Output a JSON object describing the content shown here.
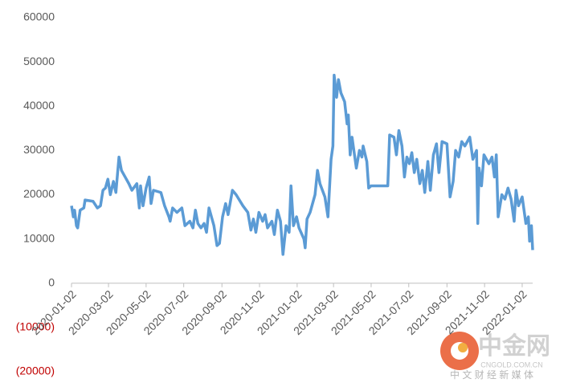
{
  "chart_data": {
    "type": "line",
    "x": [
      "2020-01-02",
      "2020-01-05",
      "2020-01-07",
      "2020-01-10",
      "2020-01-12",
      "2020-01-16",
      "2020-01-22",
      "2020-01-24",
      "2020-02-06",
      "2020-02-13",
      "2020-02-18",
      "2020-02-22",
      "2020-02-26",
      "2020-03-01",
      "2020-03-05",
      "2020-03-10",
      "2020-03-14",
      "2020-03-19",
      "2020-03-23",
      "2020-03-29",
      "2020-04-04",
      "2020-04-09",
      "2020-04-17",
      "2020-04-21",
      "2020-04-23",
      "2020-04-27",
      "2020-05-02",
      "2020-05-07",
      "2020-05-10",
      "2020-05-14",
      "2020-05-26",
      "2020-06-01",
      "2020-06-08",
      "2020-06-10",
      "2020-06-14",
      "2020-06-21",
      "2020-06-29",
      "2020-07-04",
      "2020-07-12",
      "2020-07-17",
      "2020-07-21",
      "2020-07-25",
      "2020-07-30",
      "2020-08-04",
      "2020-08-08",
      "2020-08-12",
      "2020-08-20",
      "2020-08-25",
      "2020-08-29",
      "2020-09-03",
      "2020-09-08",
      "2020-09-12",
      "2020-09-19",
      "2020-09-25",
      "2020-10-06",
      "2020-10-14",
      "2020-10-19",
      "2020-10-23",
      "2020-10-27",
      "2020-11-01",
      "2020-11-07",
      "2020-11-11",
      "2020-11-15",
      "2020-11-22",
      "2020-11-26",
      "2020-12-01",
      "2020-12-06",
      "2020-12-10",
      "2020-12-15",
      "2020-12-20",
      "2020-12-23",
      "2020-12-27",
      "2021-01-01",
      "2021-01-05",
      "2021-01-13",
      "2021-01-15",
      "2021-01-18",
      "2021-01-23",
      "2021-01-31",
      "2021-02-04",
      "2021-02-08",
      "2021-02-16",
      "2021-02-21",
      "2021-02-26",
      "2021-03-01",
      "2021-03-03",
      "2021-03-07",
      "2021-03-10",
      "2021-03-14",
      "2021-03-20",
      "2021-03-24",
      "2021-03-26",
      "2021-03-29",
      "2021-04-01",
      "2021-04-08",
      "2021-04-13",
      "2021-04-17",
      "2021-04-19",
      "2021-04-25",
      "2021-04-28",
      "2021-05-02",
      "2021-05-29",
      "2021-06-01",
      "2021-06-08",
      "2021-06-12",
      "2021-06-16",
      "2021-06-21",
      "2021-06-25",
      "2021-06-29",
      "2021-07-03",
      "2021-07-07",
      "2021-07-11",
      "2021-07-15",
      "2021-07-20",
      "2021-07-24",
      "2021-07-28",
      "2021-08-02",
      "2021-08-06",
      "2021-08-11",
      "2021-08-16",
      "2021-08-20",
      "2021-08-25",
      "2021-09-02",
      "2021-09-07",
      "2021-09-12",
      "2021-09-16",
      "2021-09-21",
      "2021-09-26",
      "2021-10-01",
      "2021-10-09",
      "2021-10-14",
      "2021-10-20",
      "2021-10-22",
      "2021-10-24",
      "2021-10-28",
      "2021-11-01",
      "2021-11-09",
      "2021-11-14",
      "2021-11-18",
      "2021-11-21",
      "2021-11-24",
      "2021-11-30",
      "2021-12-05",
      "2021-12-10",
      "2021-12-15",
      "2021-12-20",
      "2021-12-23",
      "2021-12-27",
      "2022-01-02",
      "2022-01-08",
      "2022-01-12",
      "2022-01-14",
      "2022-01-17",
      "2022-01-19"
    ],
    "series": [
      {
        "color": "#5b9bd5",
        "values": [
          17500,
          15000,
          16500,
          13000,
          12500,
          16500,
          17000,
          18800,
          18500,
          17000,
          17500,
          21000,
          21500,
          23500,
          20000,
          23000,
          20500,
          28500,
          25500,
          24000,
          22500,
          21000,
          22500,
          17000,
          22000,
          17500,
          21500,
          24000,
          18000,
          21000,
          20500,
          17500,
          15000,
          14000,
          17000,
          16000,
          17000,
          13000,
          14000,
          12500,
          16500,
          13500,
          12500,
          13500,
          11500,
          17000,
          13000,
          8500,
          9000,
          15000,
          18000,
          15500,
          21000,
          20000,
          17500,
          16000,
          12000,
          14500,
          11500,
          16000,
          14000,
          15500,
          12500,
          14000,
          11000,
          16500,
          14000,
          6500,
          13000,
          11500,
          22000,
          13000,
          15000,
          12500,
          10000,
          8000,
          14500,
          16000,
          20000,
          25500,
          22500,
          19500,
          15000,
          28000,
          31000,
          47000,
          42000,
          46000,
          43000,
          41000,
          36000,
          38000,
          29000,
          33000,
          26000,
          30000,
          28500,
          31000,
          27500,
          21500,
          22000,
          22000,
          33500,
          33000,
          29000,
          34500,
          31000,
          24000,
          28500,
          27000,
          29500,
          25000,
          28000,
          22500,
          25500,
          20500,
          27500,
          21000,
          29000,
          31500,
          25000,
          32000,
          31500,
          19500,
          23000,
          30000,
          28500,
          32000,
          31000,
          33000,
          28000,
          30000,
          13500,
          26000,
          22000,
          29000,
          27000,
          28500,
          24000,
          29000,
          15000,
          20000,
          19000,
          21500,
          19000,
          14000,
          21000,
          17500,
          19500,
          13500,
          15000,
          9500,
          13000,
          7500
        ]
      }
    ],
    "xlim": [
      "2020-01-02",
      "2022-01-19"
    ],
    "xticks": [
      "2020-01-02",
      "2020-03-02",
      "2020-05-02",
      "2020-07-02",
      "2020-09-02",
      "2020-11-02",
      "2021-01-02",
      "2021-03-02",
      "2021-05-02",
      "2021-07-02",
      "2021-09-02",
      "2021-11-02",
      "2022-01-02"
    ],
    "ylim": [
      -20000,
      60000
    ],
    "yticks": [
      {
        "value": -20000,
        "label": "(20000)"
      },
      {
        "value": -10000,
        "label": "(10000)"
      },
      0,
      10000,
      20000,
      30000,
      40000,
      50000,
      60000
    ],
    "negative_tick_color": "#c00000",
    "grid": false
  },
  "watermark": {
    "name": "中金网",
    "site": "CNGOLD.COM.CN",
    "slogan": "中 文 财 经 新 媒 体"
  }
}
